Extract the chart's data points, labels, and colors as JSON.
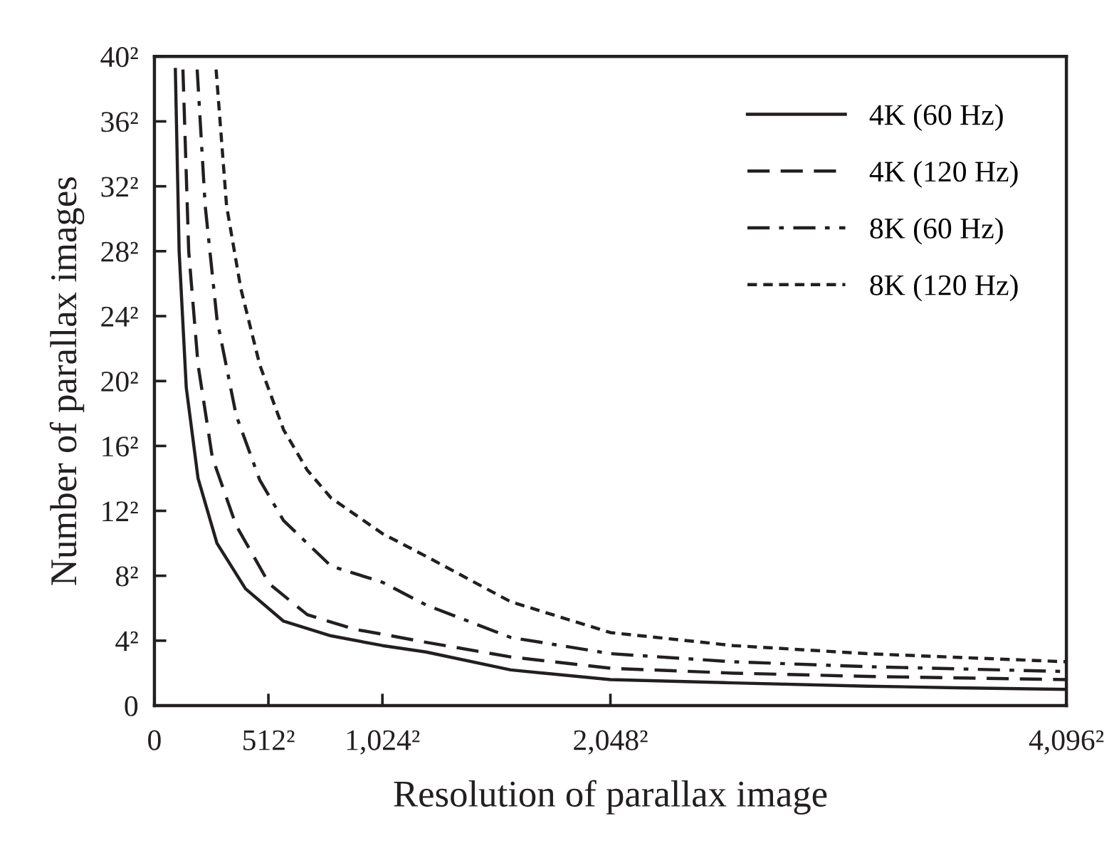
{
  "chart_data": {
    "type": "line",
    "xlabel": "Resolution of parallax image",
    "ylabel": "Number of parallax images",
    "xlim": [
      0,
      4096
    ],
    "ylim": [
      0,
      40
    ],
    "xticks": [
      0,
      {
        "value": 512,
        "label": "512²"
      },
      {
        "value": 1024,
        "label": "1,024²"
      },
      {
        "value": 2048,
        "label": "2,048²"
      },
      {
        "value": 4096,
        "label": "4,096²"
      }
    ],
    "yticks": [
      0,
      {
        "value": 4,
        "label": "4²"
      },
      {
        "value": 8,
        "label": "8²"
      },
      {
        "value": 12,
        "label": "12²"
      },
      {
        "value": 16,
        "label": "16²"
      },
      {
        "value": 20,
        "label": "20²"
      },
      {
        "value": 24,
        "label": "24²"
      },
      {
        "value": 28,
        "label": "28²"
      },
      {
        "value": 32,
        "label": "32²"
      },
      {
        "value": 36,
        "label": "36²"
      },
      {
        "value": 40,
        "label": "40²"
      }
    ],
    "grid": false,
    "legend": "top right",
    "marker": "none",
    "series": [
      {
        "name": "4K (60 Hz)",
        "color": "#231f20",
        "line_style": "solid",
        "x": [
          94,
          111,
          143,
          196,
          281,
          409,
          580,
          793,
          1024,
          1220,
          1600,
          2048,
          2600,
          3200,
          3600,
          4096
        ],
        "values": [
          39.2,
          28,
          19.6,
          14,
          10,
          7.2,
          5.2,
          4.3,
          3.7,
          3.3,
          2.2,
          1.6,
          1.4,
          1.2,
          1.1,
          1.0
        ]
      },
      {
        "name": "4K (120 Hz)",
        "color": "#231f20",
        "line_style": "dashed",
        "x": [
          128,
          154,
          196,
          260,
          367,
          516,
          687,
          900,
          1024,
          1220,
          1600,
          2048,
          2600,
          3200,
          4096
        ],
        "values": [
          39.2,
          28,
          21,
          15.3,
          11.1,
          7.5,
          5.6,
          4.7,
          4.4,
          3.9,
          3.0,
          2.3,
          2.0,
          1.8,
          1.6
        ]
      },
      {
        "name": "8K (60 Hz)",
        "color": "#231f20",
        "line_style": "dashdot",
        "x": [
          192,
          228,
          281,
          367,
          473,
          580,
          793,
          1024,
          1220,
          1600,
          2048,
          2600,
          3200,
          4096
        ],
        "values": [
          39.2,
          30.8,
          23.8,
          17.9,
          13.9,
          11.4,
          8.6,
          7.6,
          6.2,
          4.2,
          3.2,
          2.7,
          2.4,
          2.1
        ]
      },
      {
        "name": "8K (120 Hz)",
        "color": "#231f20",
        "line_style": "dotted",
        "x": [
          277,
          324,
          388,
          473,
          580,
          687,
          793,
          1024,
          1220,
          1600,
          2048,
          2600,
          3200,
          4096
        ],
        "values": [
          39.2,
          30.8,
          25.7,
          21,
          17,
          14.5,
          12.8,
          10.6,
          9.2,
          6.4,
          4.5,
          3.7,
          3.2,
          2.7
        ]
      }
    ]
  }
}
